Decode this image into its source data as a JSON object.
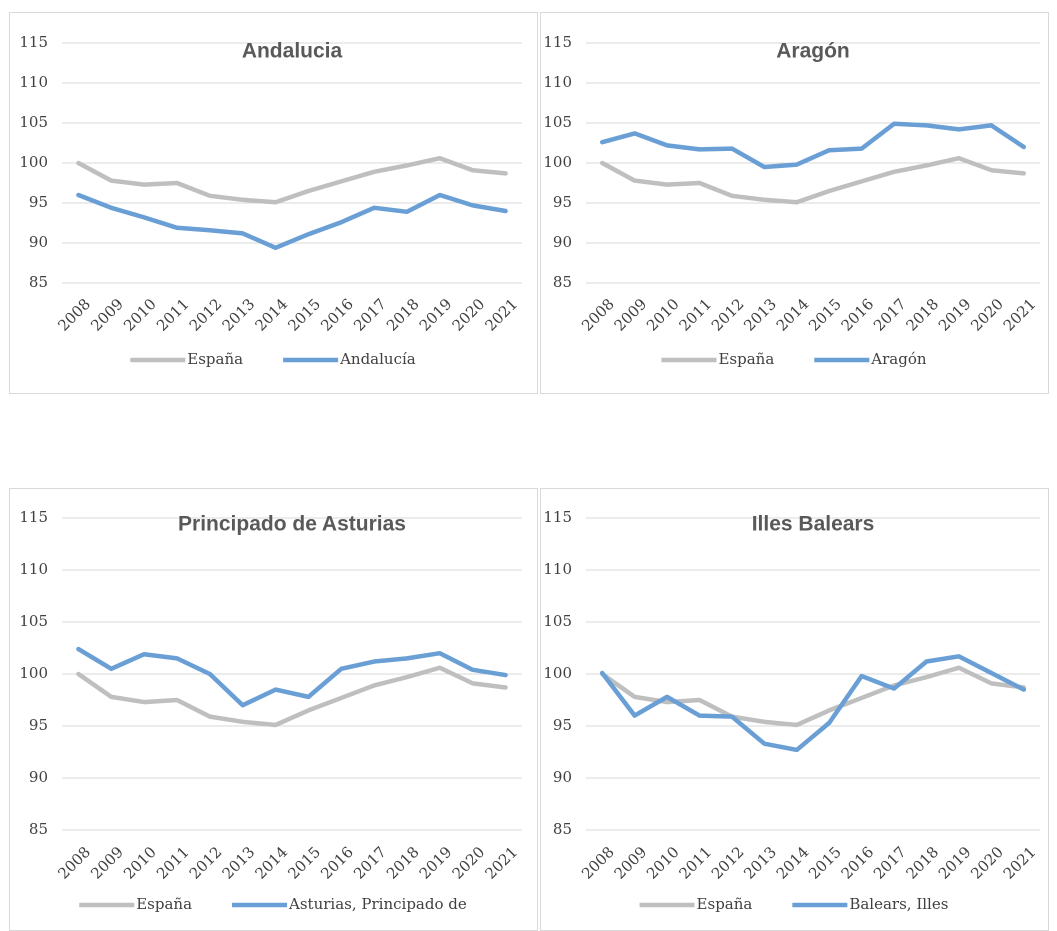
{
  "chart_data": [
    {
      "type": "line",
      "title": "Andalucia",
      "categories": [
        "2008",
        "2009",
        "2010",
        "2011",
        "2012",
        "2013",
        "2014",
        "2015",
        "2016",
        "2017",
        "2018",
        "2019",
        "2020",
        "2021"
      ],
      "series": [
        {
          "name": "España",
          "color": "#bfbfbf",
          "values": [
            100,
            97.8,
            97.3,
            97.5,
            95.9,
            95.4,
            95.1,
            96.5,
            97.7,
            98.9,
            99.7,
            100.6,
            99.1,
            98.7
          ]
        },
        {
          "name": "Andalucía",
          "color": "#6a9fd6",
          "values": [
            96,
            94.4,
            93.2,
            91.9,
            91.6,
            91.2,
            89.4,
            91.1,
            92.6,
            94.4,
            93.9,
            96.0,
            94.7,
            94.0
          ]
        }
      ],
      "ylim": [
        85,
        115
      ],
      "yticks": [
        85,
        90,
        95,
        100,
        105,
        110,
        115
      ],
      "grid": true,
      "legend": "bottom"
    },
    {
      "type": "line",
      "title": "Aragón",
      "categories": [
        "2008",
        "2009",
        "2010",
        "2011",
        "2012",
        "2013",
        "2014",
        "2015",
        "2016",
        "2017",
        "2018",
        "2019",
        "2020",
        "2021"
      ],
      "series": [
        {
          "name": "España",
          "color": "#bfbfbf",
          "values": [
            100,
            97.8,
            97.3,
            97.5,
            95.9,
            95.4,
            95.1,
            96.5,
            97.7,
            98.9,
            99.7,
            100.6,
            99.1,
            98.7
          ]
        },
        {
          "name": "Aragón",
          "color": "#6a9fd6",
          "values": [
            102.6,
            103.7,
            102.2,
            101.7,
            101.8,
            99.5,
            99.8,
            101.6,
            101.8,
            104.9,
            104.7,
            104.2,
            104.7,
            102.0
          ]
        }
      ],
      "ylim": [
        85,
        115
      ],
      "yticks": [
        85,
        90,
        95,
        100,
        105,
        110,
        115
      ],
      "grid": true,
      "legend": "bottom"
    },
    {
      "type": "line",
      "title": "Principado de Asturias",
      "categories": [
        "2008",
        "2009",
        "2010",
        "2011",
        "2012",
        "2013",
        "2014",
        "2015",
        "2016",
        "2017",
        "2018",
        "2019",
        "2020",
        "2021"
      ],
      "series": [
        {
          "name": "España",
          "color": "#bfbfbf",
          "values": [
            100,
            97.8,
            97.3,
            97.5,
            95.9,
            95.4,
            95.1,
            96.5,
            97.7,
            98.9,
            99.7,
            100.6,
            99.1,
            98.7
          ]
        },
        {
          "name": "Asturias, Principado de",
          "color": "#6a9fd6",
          "values": [
            102.4,
            100.5,
            101.9,
            101.5,
            100.0,
            97.0,
            98.5,
            97.8,
            100.5,
            101.2,
            101.5,
            102.0,
            100.4,
            99.9
          ]
        }
      ],
      "ylim": [
        85,
        115
      ],
      "yticks": [
        85,
        90,
        95,
        100,
        105,
        110,
        115
      ],
      "grid": true,
      "legend": "bottom"
    },
    {
      "type": "line",
      "title": "Illes Balears",
      "categories": [
        "2008",
        "2009",
        "2010",
        "2011",
        "2012",
        "2013",
        "2014",
        "2015",
        "2016",
        "2017",
        "2018",
        "2019",
        "2020",
        "2021"
      ],
      "series": [
        {
          "name": "España",
          "color": "#bfbfbf",
          "values": [
            100,
            97.8,
            97.3,
            97.5,
            95.9,
            95.4,
            95.1,
            96.5,
            97.7,
            98.9,
            99.7,
            100.6,
            99.1,
            98.7
          ]
        },
        {
          "name": "Balears, Illes",
          "color": "#6a9fd6",
          "values": [
            100.1,
            96.0,
            97.8,
            96.0,
            95.9,
            93.3,
            92.7,
            95.3,
            99.8,
            98.6,
            101.2,
            101.7,
            100.1,
            98.5
          ]
        }
      ],
      "ylim": [
        85,
        115
      ],
      "yticks": [
        85,
        90,
        95,
        100,
        105,
        110,
        115
      ],
      "grid": true,
      "legend": "bottom"
    }
  ]
}
